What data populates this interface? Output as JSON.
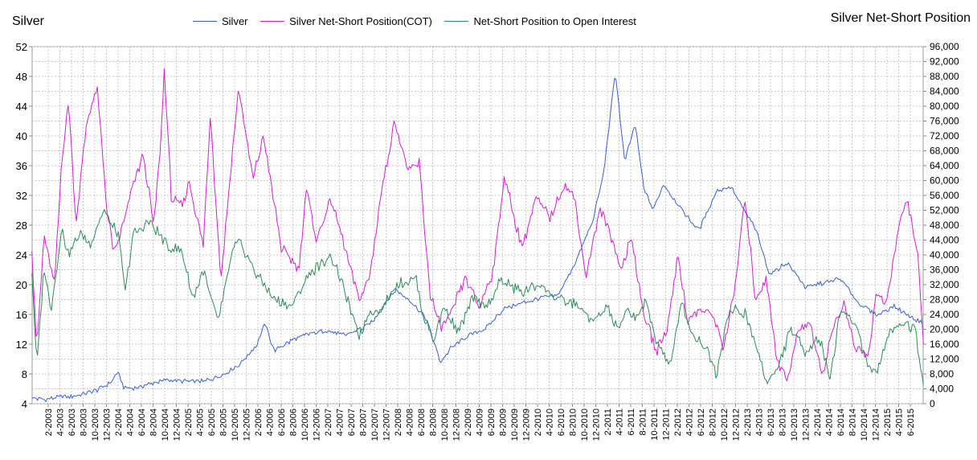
{
  "chart_data": {
    "type": "line",
    "title_left": "Silver",
    "title_right": "Silver Net-Short Position",
    "legend": [
      {
        "name": "Silver",
        "color": "#3a5fcd"
      },
      {
        "name": "Silver Net-Short Position(COT)",
        "color": "#d21fd2"
      },
      {
        "name": "Net-Short Position to Open Interest",
        "color": "#2e8b57"
      }
    ],
    "y_left": {
      "min": 4,
      "max": 52,
      "ticks": [
        "4",
        "8",
        "12",
        "16",
        "20",
        "24",
        "28",
        "32",
        "36",
        "40",
        "44",
        "48",
        "52"
      ]
    },
    "y_right": {
      "min": 0,
      "max": 96000,
      "ticks": [
        "0",
        "4,000",
        "8,000",
        "12,000",
        "16,000",
        "20,000",
        "24,000",
        "28,000",
        "32,000",
        "36,000",
        "40,000",
        "44,000",
        "48,000",
        "52,000",
        "56,000",
        "60,000",
        "64,000",
        "68,000",
        "72,000",
        "76,000",
        "80,000",
        "84,000",
        "88,000",
        "92,000",
        "96,000"
      ]
    },
    "x_range": {
      "start": 2003.083,
      "end": 2015.667
    },
    "x_tick_labels": [
      "2-2003",
      "4-2003",
      "6-2003",
      "8-2003",
      "10-2003",
      "12-2003",
      "2-2004",
      "4-2004",
      "6-2004",
      "8-2004",
      "10-2004",
      "12-2004",
      "2-2005",
      "4-2005",
      "6-2005",
      "8-2005",
      "10-2005",
      "12-2005",
      "2-2006",
      "4-2006",
      "6-2006",
      "8-2006",
      "10-2006",
      "12-2006",
      "2-2007",
      "4-2007",
      "6-2007",
      "8-2007",
      "10-2007",
      "12-2007",
      "2-2008",
      "4-2008",
      "6-2008",
      "8-2008",
      "10-2008",
      "12-2008",
      "2-2009",
      "4-2009",
      "6-2009",
      "8-2009",
      "10-2009",
      "12-2009",
      "2-2010",
      "4-2010",
      "6-2010",
      "8-2010",
      "10-2010",
      "12-2010",
      "2-2011",
      "4-2011",
      "6-2011",
      "8-2011",
      "10-2011",
      "12-2011",
      "2-2012",
      "4-2012",
      "6-2012",
      "8-2012",
      "10-2012",
      "12-2012",
      "2-2013",
      "4-2013",
      "6-2013",
      "8-2013",
      "10-2013",
      "12-2013",
      "2-2014",
      "4-2014",
      "6-2014",
      "8-2014",
      "10-2014",
      "12-2014",
      "2-2015",
      "4-2015",
      "6-2015"
    ],
    "grid": true,
    "series": [
      {
        "name": "Silver",
        "axis": "left",
        "color": "#3a5fcd",
        "x": [
          2003.08,
          2003.25,
          2003.5,
          2003.75,
          2004.0,
          2004.2,
          2004.29,
          2004.38,
          2004.5,
          2004.75,
          2005.0,
          2005.25,
          2005.5,
          2005.75,
          2006.0,
          2006.25,
          2006.37,
          2006.5,
          2006.75,
          2007.0,
          2007.25,
          2007.5,
          2007.75,
          2007.9,
          2008.0,
          2008.2,
          2008.45,
          2008.65,
          2008.85,
          2009.0,
          2009.25,
          2009.5,
          2009.75,
          2010.0,
          2010.25,
          2010.5,
          2010.75,
          2011.0,
          2011.15,
          2011.32,
          2011.45,
          2011.6,
          2011.72,
          2011.85,
          2012.0,
          2012.25,
          2012.5,
          2012.75,
          2012.95,
          2013.1,
          2013.3,
          2013.5,
          2013.75,
          2014.0,
          2014.25,
          2014.5,
          2014.75,
          2015.0,
          2015.25,
          2015.5,
          2015.65
        ],
        "y": [
          4.7,
          4.6,
          4.9,
          5.1,
          5.8,
          6.9,
          8.3,
          6.2,
          6.0,
          6.7,
          7.2,
          7.0,
          7.0,
          7.8,
          9.2,
          11.8,
          14.8,
          11.1,
          12.5,
          13.4,
          13.8,
          13.2,
          14.2,
          15.1,
          16.5,
          19.5,
          17.6,
          15.4,
          9.6,
          11.5,
          13.2,
          14.2,
          16.8,
          17.5,
          18.2,
          18.5,
          22.8,
          28.5,
          34.8,
          48.6,
          36.5,
          41.6,
          33.0,
          30.0,
          33.5,
          30.2,
          27.3,
          32.6,
          33.2,
          30.6,
          27.5,
          21.4,
          23.0,
          19.7,
          20.2,
          20.8,
          17.6,
          15.9,
          17.1,
          15.6,
          14.8
        ]
      },
      {
        "name": "Silver Net-Short Position(COT)",
        "axis": "right",
        "color": "#d21fd2",
        "x": [
          2003.08,
          2003.15,
          2003.25,
          2003.4,
          2003.5,
          2003.6,
          2003.7,
          2003.85,
          2004.0,
          2004.15,
          2004.25,
          2004.5,
          2004.65,
          2004.8,
          2004.9,
          2004.95,
          2005.05,
          2005.2,
          2005.3,
          2005.5,
          2005.6,
          2005.75,
          2005.85,
          2006.0,
          2006.2,
          2006.35,
          2006.6,
          2006.85,
          2006.95,
          2007.1,
          2007.3,
          2007.5,
          2007.7,
          2007.85,
          2008.0,
          2008.2,
          2008.4,
          2008.55,
          2008.7,
          2008.85,
          2009.0,
          2009.2,
          2009.4,
          2009.6,
          2009.75,
          2010.0,
          2010.2,
          2010.4,
          2010.6,
          2010.75,
          2010.9,
          2011.1,
          2011.25,
          2011.4,
          2011.55,
          2011.7,
          2011.9,
          2012.05,
          2012.2,
          2012.35,
          2012.5,
          2012.7,
          2012.85,
          2013.0,
          2013.15,
          2013.3,
          2013.45,
          2013.6,
          2013.75,
          2013.9,
          2014.05,
          2014.25,
          2014.4,
          2014.55,
          2014.7,
          2014.9,
          2015.0,
          2015.15,
          2015.3,
          2015.45,
          2015.6,
          2015.67
        ],
        "y": [
          41000,
          15000,
          45000,
          32000,
          65000,
          82000,
          48000,
          75000,
          85000,
          50000,
          40000,
          58000,
          67000,
          48000,
          70000,
          90000,
          55000,
          53000,
          60000,
          42000,
          78000,
          33000,
          55000,
          85000,
          60000,
          72000,
          42000,
          36000,
          58000,
          44000,
          55000,
          42000,
          28000,
          34000,
          55000,
          76000,
          62000,
          65000,
          30000,
          20000,
          24000,
          34000,
          26000,
          36000,
          61000,
          42000,
          55000,
          50000,
          59000,
          55000,
          34000,
          52000,
          46000,
          36000,
          45000,
          26000,
          14000,
          20000,
          40000,
          22000,
          25000,
          24000,
          15000,
          30000,
          55000,
          28000,
          34000,
          12000,
          6000,
          20000,
          22000,
          8000,
          21000,
          27000,
          15000,
          13000,
          30000,
          26000,
          46000,
          55000,
          38000,
          16000
        ]
      },
      {
        "name": "Net-Short Position to Open Interest",
        "axis": "right",
        "color": "#2e8b57",
        "x": [
          2003.08,
          2003.15,
          2003.25,
          2003.35,
          2003.5,
          2003.6,
          2003.75,
          2003.9,
          2004.1,
          2004.3,
          2004.4,
          2004.5,
          2004.75,
          2005.0,
          2005.2,
          2005.35,
          2005.5,
          2005.7,
          2005.8,
          2005.9,
          2006.0,
          2006.25,
          2006.5,
          2006.75,
          2007.0,
          2007.2,
          2007.3,
          2007.5,
          2007.7,
          2007.85,
          2008.0,
          2008.25,
          2008.5,
          2008.6,
          2008.75,
          2008.9,
          2009.1,
          2009.3,
          2009.5,
          2009.7,
          2010.0,
          2010.25,
          2010.5,
          2010.75,
          2011.0,
          2011.2,
          2011.35,
          2011.5,
          2011.6,
          2011.75,
          2011.9,
          2012.1,
          2012.25,
          2012.4,
          2012.6,
          2012.75,
          2012.9,
          2013.0,
          2013.15,
          2013.3,
          2013.45,
          2013.6,
          2013.8,
          2014.0,
          2014.2,
          2014.35,
          2014.5,
          2014.7,
          2014.9,
          2015.0,
          2015.2,
          2015.4,
          2015.55,
          2015.67
        ],
        "y": [
          35000,
          10000,
          37000,
          25000,
          47000,
          40000,
          46000,
          43000,
          52000,
          45000,
          30000,
          45000,
          49000,
          42000,
          41000,
          28000,
          36000,
          22000,
          30000,
          40000,
          44000,
          35000,
          28000,
          26000,
          35000,
          38000,
          40000,
          30000,
          18000,
          25000,
          25000,
          32000,
          34000,
          24000,
          17000,
          26000,
          19000,
          28000,
          26000,
          33000,
          30000,
          32000,
          28000,
          27000,
          22000,
          26000,
          20000,
          25000,
          23000,
          27000,
          17000,
          10000,
          28000,
          19000,
          15000,
          8000,
          24000,
          25000,
          24000,
          16000,
          6000,
          9000,
          20000,
          14000,
          18000,
          7000,
          25000,
          22000,
          10000,
          8000,
          20000,
          22000,
          20000,
          5000
        ]
      }
    ]
  }
}
